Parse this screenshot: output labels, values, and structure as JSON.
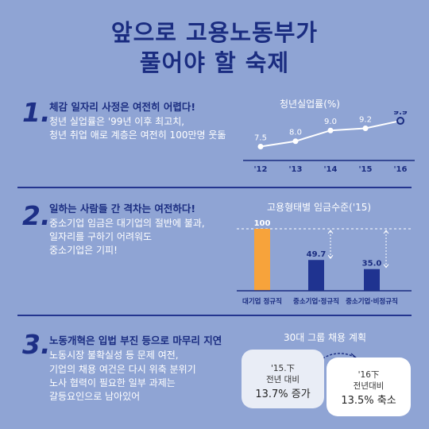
{
  "title": {
    "line1": "앞으로 고용노동부가",
    "line2": "풀어야 할 숙제"
  },
  "section1": {
    "number": "1.",
    "heading": "체감 일자리 사정은 여전히 어렵다!",
    "lines": [
      "청년 실업률은 '99년 이후 최고치,",
      "청년 취업 애로 계층은 여전히 100만명 웃돎"
    ]
  },
  "section2": {
    "number": "2.",
    "heading": "일하는 사람들 간 격차는 여전하다!",
    "lines": [
      "중소기업 임금은 대기업의 절반에 불과,",
      "일자리를 구하기 어려워도",
      "중소기업은 기피!"
    ]
  },
  "section3": {
    "number": "3.",
    "heading": "노동개혁은 입법 부진 등으로 마무리 지연",
    "lines": [
      "노동시장 불확실성 등 문제 여전,",
      "기업의 채용 여건은 다시 위축 분위기",
      "노사 협력이 필요한 일부 과제는",
      "갈등요인으로 남아있어"
    ]
  },
  "chart_data": [
    {
      "type": "line",
      "title": "청년실업률(%)",
      "categories": [
        "'12",
        "'13",
        "'14",
        "'15",
        "'16"
      ],
      "values": [
        7.5,
        8.0,
        9.0,
        9.2,
        9.9
      ],
      "value_labels": [
        "7.5",
        "8.0",
        "9.0",
        "9.2",
        "9.9"
      ]
    },
    {
      "type": "bar",
      "title": "고용형태별 임금수준('15)",
      "categories": [
        "대기업 정규직",
        "중소기업·정규직",
        "중소기업·비정규직"
      ],
      "values": [
        100,
        49.7,
        35.0
      ],
      "value_labels": [
        "100",
        "49.7",
        "35.0"
      ]
    }
  ],
  "hiring": {
    "title": "30대 그룹 채용 계획",
    "bubble1": {
      "line1": "'15.下",
      "line2": "전년 대비",
      "line3": "13.7% 증가"
    },
    "bubble2": {
      "line1": "'16下",
      "line2": "전년대비",
      "line3": "13.5% 축소"
    }
  },
  "colors": {
    "background": "#8fa4d4",
    "navy": "#1a2c80",
    "bar_highlight": "#f7a33b",
    "bar_default": "#1f3390"
  }
}
